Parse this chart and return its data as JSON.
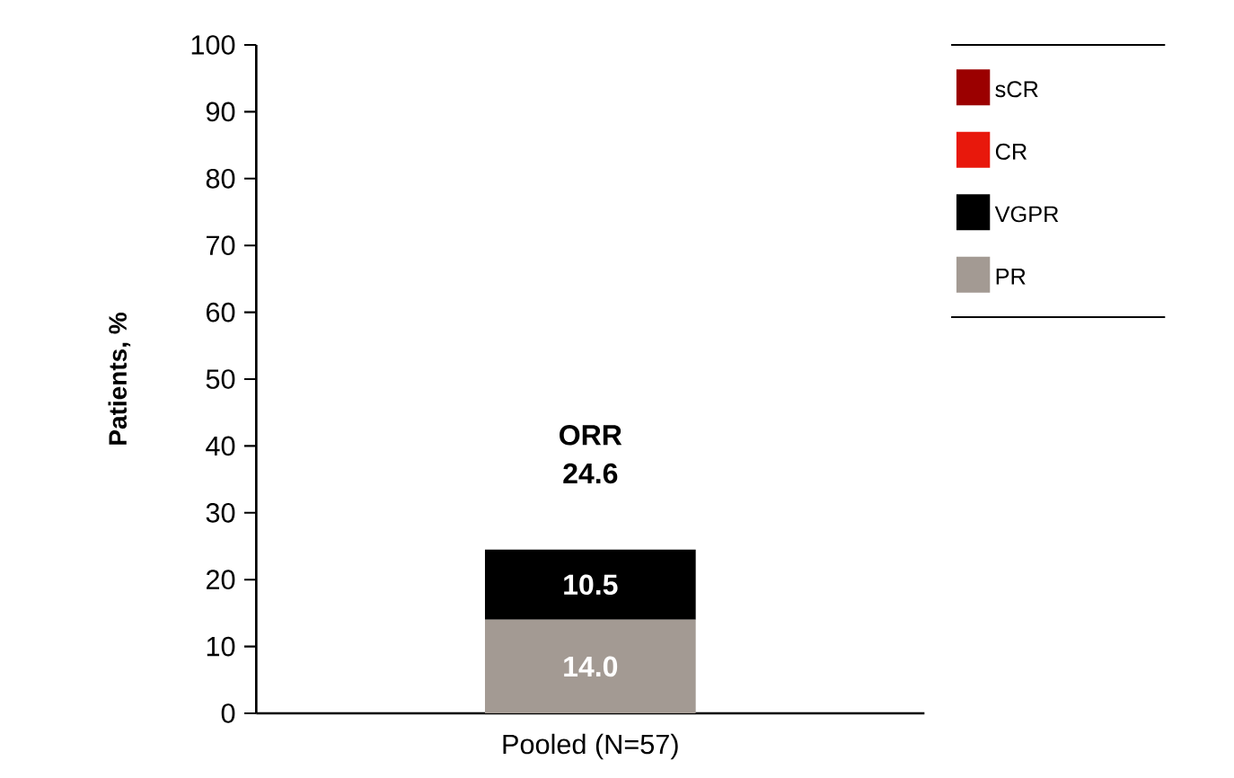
{
  "chart_data": {
    "type": "bar",
    "stacked": true,
    "ylabel": "Patients, %",
    "categories": [
      "Pooled (N=57)"
    ],
    "series": [
      {
        "name": "PR",
        "color": "#a39a93",
        "values": [
          14.0
        ],
        "value_labels": [
          "14.0"
        ]
      },
      {
        "name": "VGPR",
        "color": "#000000",
        "values": [
          10.5
        ],
        "value_labels": [
          "10.5"
        ]
      },
      {
        "name": "CR",
        "color": "#e8180c",
        "values": [
          null
        ]
      },
      {
        "name": "sCR",
        "color": "#9b0000",
        "values": [
          null
        ]
      }
    ],
    "totals": [
      "24.6"
    ],
    "annotations": [
      "ORR"
    ],
    "ylim": [
      0,
      100
    ],
    "yticks": [
      0,
      10,
      20,
      30,
      40,
      50,
      60,
      70,
      80,
      90,
      100
    ],
    "legend": "right"
  }
}
